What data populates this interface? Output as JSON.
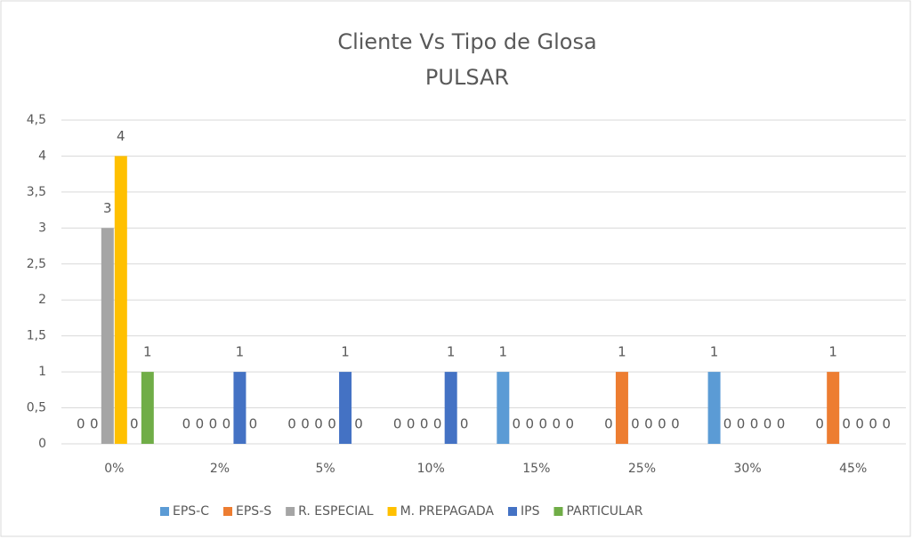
{
  "chart_data": {
    "type": "bar",
    "title": "Cliente Vs Tipo de Glosa",
    "subtitle": "PULSAR",
    "categories": [
      "0%",
      "2%",
      "5%",
      "10%",
      "15%",
      "25%",
      "30%",
      "45%"
    ],
    "series": [
      {
        "name": "EPS-C",
        "color": "#5b9bd5",
        "values": [
          0,
          0,
          0,
          0,
          1,
          0,
          1,
          0
        ]
      },
      {
        "name": "EPS-S",
        "color": "#ed7d31",
        "values": [
          0,
          0,
          0,
          0,
          0,
          1,
          0,
          1
        ]
      },
      {
        "name": "R. ESPECIAL",
        "color": "#a5a5a5",
        "values": [
          3,
          0,
          0,
          0,
          0,
          0,
          0,
          0
        ]
      },
      {
        "name": "M. PREPAGADA",
        "color": "#ffc000",
        "values": [
          4,
          0,
          0,
          0,
          0,
          0,
          0,
          0
        ]
      },
      {
        "name": "IPS",
        "color": "#4472c4",
        "values": [
          0,
          1,
          1,
          1,
          0,
          0,
          0,
          0
        ]
      },
      {
        "name": "PARTICULAR",
        "color": "#70ad47",
        "values": [
          1,
          0,
          0,
          0,
          0,
          0,
          0,
          0
        ]
      }
    ],
    "ylim": [
      0,
      4.5
    ],
    "yticks": [
      0,
      {
        "value": 0.5,
        "label": "0,5"
      },
      1,
      {
        "value": 1.5,
        "label": "1,5"
      },
      2,
      {
        "value": 2.5,
        "label": "2,5"
      },
      3,
      {
        "value": 3.5,
        "label": "3,5"
      },
      4,
      {
        "value": 4.5,
        "label": "4,5"
      }
    ],
    "grid": true,
    "legend": "bottom"
  }
}
